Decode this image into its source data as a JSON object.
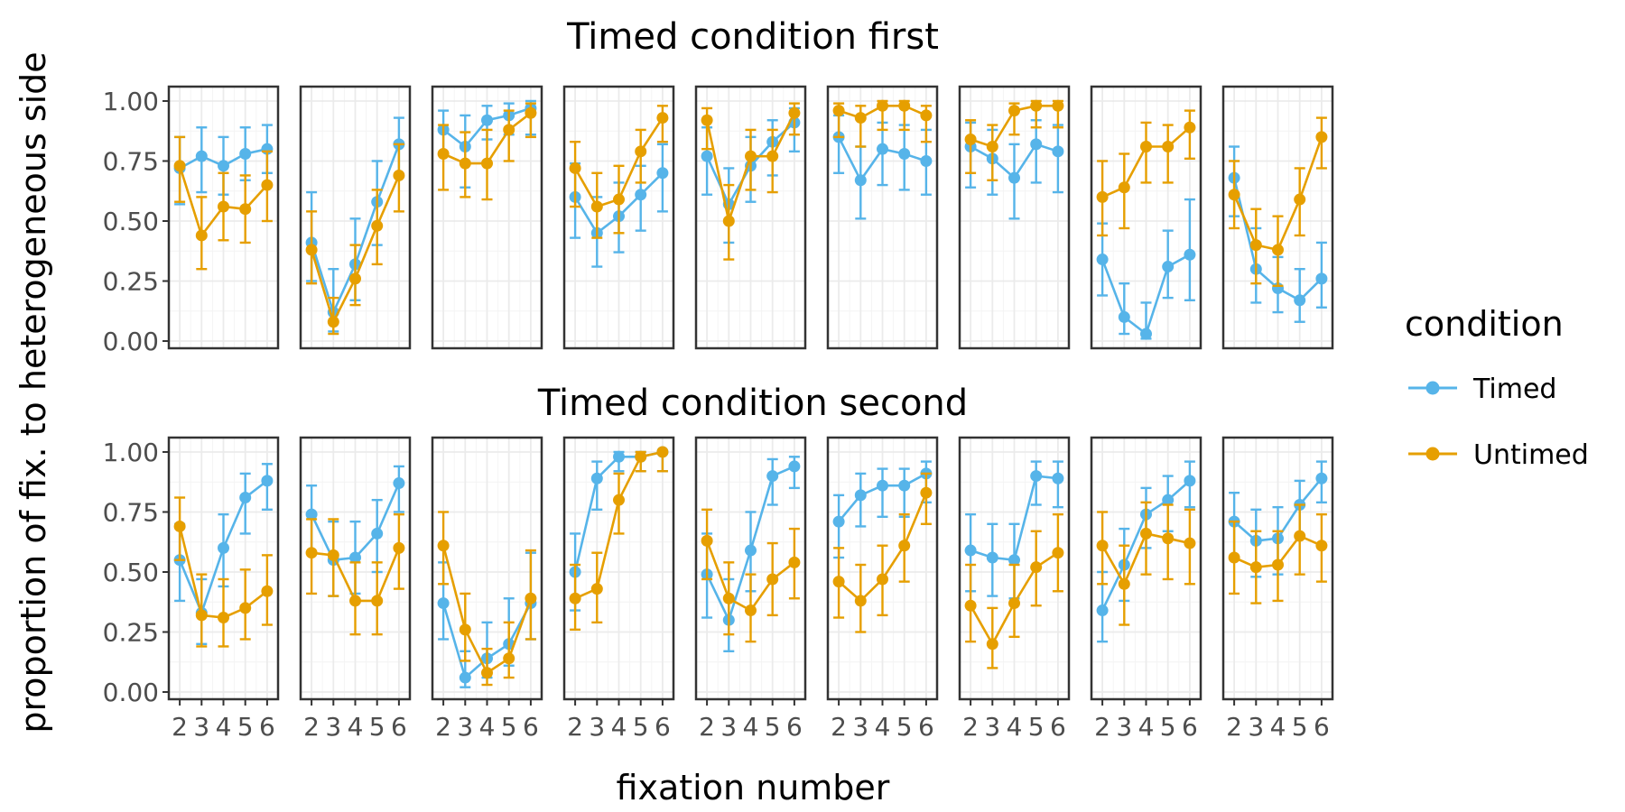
{
  "chart_data": {
    "type": "line",
    "facet_titles": [
      "Timed condition first",
      "Timed condition second"
    ],
    "xlabel": "fixation number",
    "ylabel": "proportion of fix. to heterogeneous side",
    "x_ticks": [
      "2",
      "3",
      "4",
      "5",
      "6"
    ],
    "y_ticks": [
      "1.00",
      "0.75",
      "0.50",
      "0.25",
      "0.00"
    ],
    "y_tick_values": [
      1.0,
      0.75,
      0.5,
      0.25,
      0.0
    ],
    "x_values": [
      2,
      3,
      4,
      5,
      6
    ],
    "xlim": [
      1.5,
      6.5
    ],
    "ylim": [
      -0.03,
      1.06
    ],
    "legend": {
      "title": "condition",
      "position": "right",
      "entries": [
        "Timed",
        "Untimed"
      ]
    },
    "colors": {
      "Timed": "#56B4E9",
      "Untimed": "#E69F00"
    },
    "error_bars": true,
    "grid": true,
    "rows": [
      {
        "panels": [
          {
            "Timed": {
              "y": [
                0.72,
                0.77,
                0.73,
                0.78,
                0.8
              ],
              "lo": [
                0.57,
                0.62,
                0.61,
                0.67,
                0.7
              ],
              "hi": [
                0.85,
                0.89,
                0.85,
                0.89,
                0.9
              ]
            },
            "Untimed": {
              "y": [
                0.73,
                0.44,
                0.56,
                0.55,
                0.65
              ],
              "lo": [
                0.58,
                0.3,
                0.42,
                0.41,
                0.5
              ],
              "hi": [
                0.85,
                0.6,
                0.7,
                0.69,
                0.79
              ]
            }
          },
          {
            "Timed": {
              "y": [
                0.41,
                0.12,
                0.32,
                0.58,
                0.82
              ],
              "lo": [
                0.25,
                0.04,
                0.17,
                0.4,
                0.69
              ],
              "hi": [
                0.62,
                0.3,
                0.51,
                0.75,
                0.93
              ]
            },
            "Untimed": {
              "y": [
                0.38,
                0.08,
                0.26,
                0.48,
                0.69
              ],
              "lo": [
                0.24,
                0.03,
                0.15,
                0.32,
                0.54
              ],
              "hi": [
                0.54,
                0.18,
                0.4,
                0.63,
                0.82
              ]
            }
          },
          {
            "Timed": {
              "y": [
                0.88,
                0.81,
                0.92,
                0.94,
                0.97
              ],
              "lo": [
                0.78,
                0.64,
                0.84,
                0.86,
                0.86
              ],
              "hi": [
                0.96,
                0.94,
                0.98,
                0.99,
                1.0
              ]
            },
            "Untimed": {
              "y": [
                0.78,
                0.74,
                0.74,
                0.88,
                0.95
              ],
              "lo": [
                0.63,
                0.6,
                0.59,
                0.75,
                0.85
              ],
              "hi": [
                0.9,
                0.87,
                0.88,
                0.96,
                0.99
              ]
            }
          },
          {
            "Timed": {
              "y": [
                0.6,
                0.45,
                0.52,
                0.61,
                0.7
              ],
              "lo": [
                0.43,
                0.31,
                0.37,
                0.46,
                0.54
              ],
              "hi": [
                0.74,
                0.6,
                0.66,
                0.73,
                0.82
              ]
            },
            "Untimed": {
              "y": [
                0.72,
                0.56,
                0.59,
                0.79,
                0.93
              ],
              "lo": [
                0.56,
                0.43,
                0.45,
                0.66,
                0.83
              ],
              "hi": [
                0.83,
                0.7,
                0.73,
                0.88,
                0.98
              ]
            }
          },
          {
            "Timed": {
              "y": [
                0.77,
                0.57,
                0.73,
                0.83,
                0.91
              ],
              "lo": [
                0.61,
                0.41,
                0.58,
                0.69,
                0.79
              ],
              "hi": [
                0.89,
                0.72,
                0.85,
                0.92,
                0.97
              ]
            },
            "Untimed": {
              "y": [
                0.92,
                0.5,
                0.77,
                0.77,
                0.95
              ],
              "lo": [
                0.8,
                0.34,
                0.63,
                0.62,
                0.86
              ],
              "hi": [
                0.97,
                0.65,
                0.88,
                0.88,
                0.99
              ]
            }
          },
          {
            "Timed": {
              "y": [
                0.85,
                0.67,
                0.8,
                0.78,
                0.75
              ],
              "lo": [
                0.7,
                0.51,
                0.65,
                0.63,
                0.61
              ],
              "hi": [
                0.94,
                0.81,
                0.91,
                0.9,
                0.88
              ]
            },
            "Untimed": {
              "y": [
                0.96,
                0.93,
                0.98,
                0.98,
                0.94
              ],
              "lo": [
                0.85,
                0.81,
                0.88,
                0.88,
                0.83
              ],
              "hi": [
                0.99,
                0.98,
                1.0,
                1.0,
                0.98
              ]
            }
          },
          {
            "Timed": {
              "y": [
                0.81,
                0.76,
                0.68,
                0.82,
                0.79
              ],
              "lo": [
                0.64,
                0.61,
                0.51,
                0.66,
                0.62
              ],
              "hi": [
                0.91,
                0.88,
                0.82,
                0.92,
                0.9
              ]
            },
            "Untimed": {
              "y": [
                0.84,
                0.81,
                0.96,
                0.98,
                0.98
              ],
              "lo": [
                0.7,
                0.67,
                0.86,
                0.89,
                0.89
              ],
              "hi": [
                0.92,
                0.9,
                0.99,
                1.0,
                1.0
              ]
            }
          },
          {
            "Timed": {
              "y": [
                0.34,
                0.1,
                0.03,
                0.31,
                0.36
              ],
              "lo": [
                0.19,
                0.03,
                0.01,
                0.18,
                0.17
              ],
              "hi": [
                0.49,
                0.24,
                0.16,
                0.46,
                0.59
              ]
            },
            "Untimed": {
              "y": [
                0.6,
                0.64,
                0.81,
                0.81,
                0.89
              ],
              "lo": [
                0.44,
                0.47,
                0.66,
                0.66,
                0.76
              ],
              "hi": [
                0.75,
                0.78,
                0.91,
                0.9,
                0.96
              ]
            }
          },
          {
            "Timed": {
              "y": [
                0.68,
                0.3,
                0.22,
                0.17,
                0.26
              ],
              "lo": [
                0.52,
                0.16,
                0.12,
                0.08,
                0.14
              ],
              "hi": [
                0.81,
                0.47,
                0.35,
                0.3,
                0.41
              ]
            },
            "Untimed": {
              "y": [
                0.61,
                0.4,
                0.38,
                0.59,
                0.85
              ],
              "lo": [
                0.47,
                0.24,
                0.23,
                0.44,
                0.72
              ],
              "hi": [
                0.75,
                0.55,
                0.52,
                0.72,
                0.93
              ]
            }
          }
        ]
      },
      {
        "panels": [
          {
            "Timed": {
              "y": [
                0.55,
                0.33,
                0.6,
                0.81,
                0.88
              ],
              "lo": [
                0.38,
                0.2,
                0.44,
                0.66,
                0.76
              ],
              "hi": [
                0.7,
                0.47,
                0.74,
                0.91,
                0.95
              ]
            },
            "Untimed": {
              "y": [
                0.69,
                0.32,
                0.31,
                0.35,
                0.42
              ],
              "lo": [
                0.55,
                0.19,
                0.19,
                0.22,
                0.28
              ],
              "hi": [
                0.81,
                0.49,
                0.47,
                0.51,
                0.57
              ]
            }
          },
          {
            "Timed": {
              "y": [
                0.74,
                0.55,
                0.56,
                0.66,
                0.87
              ],
              "lo": [
                0.58,
                0.4,
                0.41,
                0.5,
                0.75
              ],
              "hi": [
                0.86,
                0.71,
                0.71,
                0.8,
                0.94
              ]
            },
            "Untimed": {
              "y": [
                0.58,
                0.57,
                0.38,
                0.38,
                0.6
              ],
              "lo": [
                0.41,
                0.4,
                0.24,
                0.24,
                0.43
              ],
              "hi": [
                0.72,
                0.72,
                0.54,
                0.54,
                0.74
              ]
            }
          },
          {
            "Timed": {
              "y": [
                0.37,
                0.06,
                0.14,
                0.2,
                0.37
              ],
              "lo": [
                0.22,
                0.02,
                0.06,
                0.11,
                0.22
              ],
              "hi": [
                0.54,
                0.17,
                0.29,
                0.39,
                0.58
              ]
            },
            "Untimed": {
              "y": [
                0.61,
                0.26,
                0.08,
                0.14,
                0.39
              ],
              "lo": [
                0.45,
                0.13,
                0.03,
                0.06,
                0.22
              ],
              "hi": [
                0.75,
                0.41,
                0.18,
                0.29,
                0.59
              ]
            }
          },
          {
            "Timed": {
              "y": [
                0.5,
                0.89,
                0.98,
                0.98,
                1.0
              ],
              "lo": [
                0.34,
                0.76,
                0.92,
                0.92,
                0.92
              ],
              "hi": [
                0.66,
                0.96,
                1.0,
                1.0,
                1.0
              ]
            },
            "Untimed": {
              "y": [
                0.39,
                0.43,
                0.8,
                0.98,
                1.0
              ],
              "lo": [
                0.26,
                0.29,
                0.66,
                0.92,
                0.92
              ],
              "hi": [
                0.53,
                0.58,
                0.91,
                1.0,
                1.0
              ]
            }
          },
          {
            "Timed": {
              "y": [
                0.49,
                0.3,
                0.59,
                0.9,
                0.94
              ],
              "lo": [
                0.31,
                0.17,
                0.42,
                0.78,
                0.85
              ],
              "hi": [
                0.66,
                0.47,
                0.75,
                0.97,
                0.98
              ]
            },
            "Untimed": {
              "y": [
                0.63,
                0.39,
                0.34,
                0.47,
                0.54
              ],
              "lo": [
                0.47,
                0.24,
                0.21,
                0.32,
                0.39
              ],
              "hi": [
                0.76,
                0.54,
                0.49,
                0.62,
                0.68
              ]
            }
          },
          {
            "Timed": {
              "y": [
                0.71,
                0.82,
                0.86,
                0.86,
                0.91
              ],
              "lo": [
                0.56,
                0.69,
                0.73,
                0.73,
                0.79
              ],
              "hi": [
                0.82,
                0.91,
                0.93,
                0.93,
                0.96
              ]
            },
            "Untimed": {
              "y": [
                0.46,
                0.38,
                0.47,
                0.61,
                0.83
              ],
              "lo": [
                0.31,
                0.25,
                0.32,
                0.46,
                0.7
              ],
              "hi": [
                0.6,
                0.53,
                0.61,
                0.74,
                0.91
              ]
            }
          },
          {
            "Timed": {
              "y": [
                0.59,
                0.56,
                0.55,
                0.9,
                0.89
              ],
              "lo": [
                0.42,
                0.4,
                0.39,
                0.78,
                0.77
              ],
              "hi": [
                0.74,
                0.7,
                0.7,
                0.96,
                0.96
              ]
            },
            "Untimed": {
              "y": [
                0.36,
                0.2,
                0.37,
                0.52,
                0.58
              ],
              "lo": [
                0.21,
                0.1,
                0.23,
                0.36,
                0.42
              ],
              "hi": [
                0.53,
                0.35,
                0.53,
                0.67,
                0.74
              ]
            }
          },
          {
            "Timed": {
              "y": [
                0.34,
                0.53,
                0.74,
                0.8,
                0.88
              ],
              "lo": [
                0.21,
                0.38,
                0.6,
                0.67,
                0.77
              ],
              "hi": [
                0.5,
                0.68,
                0.85,
                0.9,
                0.96
              ]
            },
            "Untimed": {
              "y": [
                0.61,
                0.45,
                0.66,
                0.64,
                0.62
              ],
              "lo": [
                0.45,
                0.28,
                0.49,
                0.47,
                0.45
              ],
              "hi": [
                0.75,
                0.61,
                0.79,
                0.78,
                0.76
              ]
            }
          },
          {
            "Timed": {
              "y": [
                0.71,
                0.63,
                0.64,
                0.78,
                0.89
              ],
              "lo": [
                0.56,
                0.48,
                0.49,
                0.65,
                0.79
              ],
              "hi": [
                0.83,
                0.76,
                0.77,
                0.88,
                0.96
              ]
            },
            "Untimed": {
              "y": [
                0.56,
                0.52,
                0.53,
                0.65,
                0.61
              ],
              "lo": [
                0.41,
                0.37,
                0.38,
                0.49,
                0.46
              ],
              "hi": [
                0.71,
                0.67,
                0.67,
                0.78,
                0.74
              ]
            }
          }
        ]
      }
    ]
  }
}
